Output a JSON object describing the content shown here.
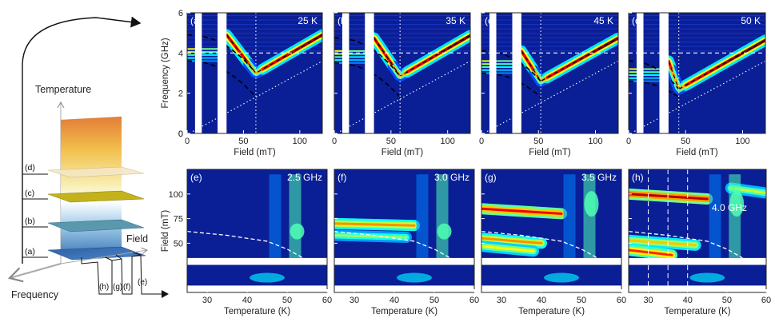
{
  "schematic": {
    "temperature_label": "Temperature",
    "field_label": "Field",
    "frequency_label": "Frequency",
    "slice_labels": [
      "(a)",
      "(b)",
      "(c)",
      "(d)"
    ],
    "freq_slice_labels": [
      "(h)",
      "(g)",
      "(f)",
      "(e)"
    ]
  },
  "chart_data": [
    {
      "type": "heatmap",
      "panel": "(a)",
      "title": "25 K",
      "xlabel": "Field (mT)",
      "ylabel": "Frequency (GHz)",
      "xlim": [
        0,
        120
      ],
      "ylim": [
        0,
        6
      ],
      "xticks": [
        0,
        50,
        100
      ],
      "yticks": [
        0,
        2,
        4,
        6
      ],
      "masked_x": [
        [
          7,
          13
        ],
        [
          27,
          35
        ]
      ],
      "resonance": {
        "min_field": 61,
        "min_freq": 3.0,
        "low_branch_peak": 3.6,
        "high_branch_peak": 4.9
      },
      "vertical_marker": 61
    },
    {
      "type": "heatmap",
      "panel": "(b)",
      "title": "35 K",
      "xlabel": "Field (mT)",
      "ylabel": "",
      "xlim": [
        0,
        120
      ],
      "ylim": [
        0,
        6
      ],
      "xticks": [
        0,
        50,
        100
      ],
      "yticks": [
        0,
        2,
        4,
        6
      ],
      "masked_x": [
        [
          7,
          13
        ],
        [
          27,
          35
        ]
      ],
      "resonance": {
        "min_field": 58,
        "min_freq": 2.85,
        "low_branch_peak": 3.5,
        "high_branch_peak": 4.75
      },
      "vertical_marker": 58
    },
    {
      "type": "heatmap",
      "panel": "(c)",
      "title": "45 K",
      "xlabel": "Field (mT)",
      "ylabel": "",
      "xlim": [
        0,
        120
      ],
      "ylim": [
        0,
        6
      ],
      "xticks": [
        0,
        50,
        100
      ],
      "yticks": [
        0,
        2,
        4,
        6
      ],
      "masked_x": [
        [
          7,
          13
        ],
        [
          27,
          35
        ]
      ],
      "resonance": {
        "min_field": 52,
        "min_freq": 2.6,
        "low_branch_peak": 3.0,
        "high_branch_peak": 4.1
      },
      "vertical_marker": 52
    },
    {
      "type": "heatmap",
      "panel": "(d)",
      "title": "50 K",
      "xlabel": "Field (mT)",
      "ylabel": "",
      "xlim": [
        0,
        120
      ],
      "ylim": [
        0,
        6
      ],
      "xticks": [
        0,
        50,
        100
      ],
      "yticks": [
        0,
        2,
        4,
        6
      ],
      "masked_x": [
        [
          7,
          13
        ],
        [
          27,
          35
        ]
      ],
      "resonance": {
        "min_field": 44,
        "min_freq": 2.2,
        "low_branch_peak": 2.6,
        "high_branch_peak": 3.6
      },
      "vertical_marker": 44
    },
    {
      "type": "heatmap",
      "panel": "(e)",
      "title": "2.5 GHz",
      "xlabel": "Temperature (K)",
      "ylabel": "Field (mT)",
      "xlim": [
        25,
        60
      ],
      "ylim": [
        0,
        125
      ],
      "xticks": [
        30,
        40,
        50,
        60
      ],
      "yticks": [
        50,
        75,
        100
      ],
      "masked_y": [
        [
          28,
          35
        ],
        [
          0,
          7
        ]
      ],
      "transition_curve": [
        [
          25,
          62
        ],
        [
          35,
          58
        ],
        [
          45,
          52
        ],
        [
          50,
          44
        ],
        [
          54,
          35
        ]
      ]
    },
    {
      "type": "heatmap",
      "panel": "(f)",
      "title": "3.0 GHz",
      "xlabel": "Temperature (K)",
      "ylabel": "",
      "xlim": [
        25,
        60
      ],
      "ylim": [
        0,
        125
      ],
      "xticks": [
        30,
        40,
        50,
        60
      ],
      "yticks": [
        50,
        75,
        100
      ],
      "masked_y": [
        [
          28,
          35
        ],
        [
          0,
          7
        ]
      ],
      "transition_curve": [
        [
          25,
          62
        ],
        [
          35,
          58
        ],
        [
          45,
          52
        ],
        [
          50,
          44
        ],
        [
          54,
          35
        ]
      ]
    },
    {
      "type": "heatmap",
      "panel": "(g)",
      "title": "3.5 GHz",
      "xlabel": "Temperature (K)",
      "ylabel": "",
      "xlim": [
        25,
        60
      ],
      "ylim": [
        0,
        125
      ],
      "xticks": [
        30,
        40,
        50,
        60
      ],
      "yticks": [
        50,
        75,
        100
      ],
      "masked_y": [
        [
          28,
          35
        ],
        [
          0,
          7
        ]
      ],
      "transition_curve": [
        [
          25,
          62
        ],
        [
          35,
          58
        ],
        [
          45,
          52
        ],
        [
          50,
          44
        ],
        [
          54,
          35
        ]
      ]
    },
    {
      "type": "heatmap",
      "panel": "(h)",
      "title": "4.0 GHz",
      "xlabel": "Temperature (K)",
      "ylabel": "",
      "xlim": [
        25,
        60
      ],
      "ylim": [
        0,
        125
      ],
      "xticks": [
        30,
        40,
        50,
        60
      ],
      "yticks": [
        50,
        75,
        100
      ],
      "masked_y": [
        [
          28,
          35
        ],
        [
          0,
          7
        ]
      ],
      "transition_curve": [
        [
          25,
          62
        ],
        [
          35,
          58
        ],
        [
          45,
          52
        ],
        [
          50,
          44
        ],
        [
          54,
          35
        ]
      ],
      "vertical_markers": [
        25,
        30,
        35,
        40
      ]
    }
  ]
}
